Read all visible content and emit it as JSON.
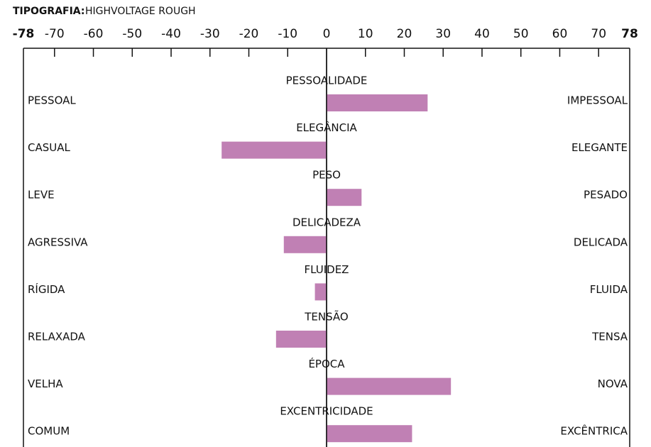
{
  "chart_data": {
    "type": "diverging_bar",
    "title": "TIPOGRAFIA:",
    "subtitle": "HIGHVOLTAGE ROUGH",
    "categories": [
      "PESSOALIDADE",
      "ELEGÂNCIA",
      "PESO",
      "DELICADEZA",
      "FLUIDEZ",
      "TENSÃO",
      "ÉPOCA",
      "EXCENTRICIDADE"
    ],
    "left_labels": [
      "PESSOAL",
      "CASUAL",
      "LEVE",
      "AGRESSIVA",
      "RÍGIDA",
      "RELAXADA",
      "VELHA",
      "COMUM"
    ],
    "right_labels": [
      "IMPESSOAL",
      "ELEGANTE",
      "PESADO",
      "DELICADA",
      "FLUIDA",
      "TENSA",
      "NOVA",
      "EXCÊNTRICA"
    ],
    "values": [
      26,
      -27,
      9,
      -11,
      -3,
      -13,
      32,
      22
    ],
    "color": "#c080b4",
    "xlim": [
      -78,
      78
    ],
    "xticks": [
      -78,
      -70,
      -60,
      -50,
      -40,
      -30,
      -20,
      -10,
      0,
      10,
      20,
      30,
      40,
      50,
      60,
      70,
      78
    ]
  }
}
